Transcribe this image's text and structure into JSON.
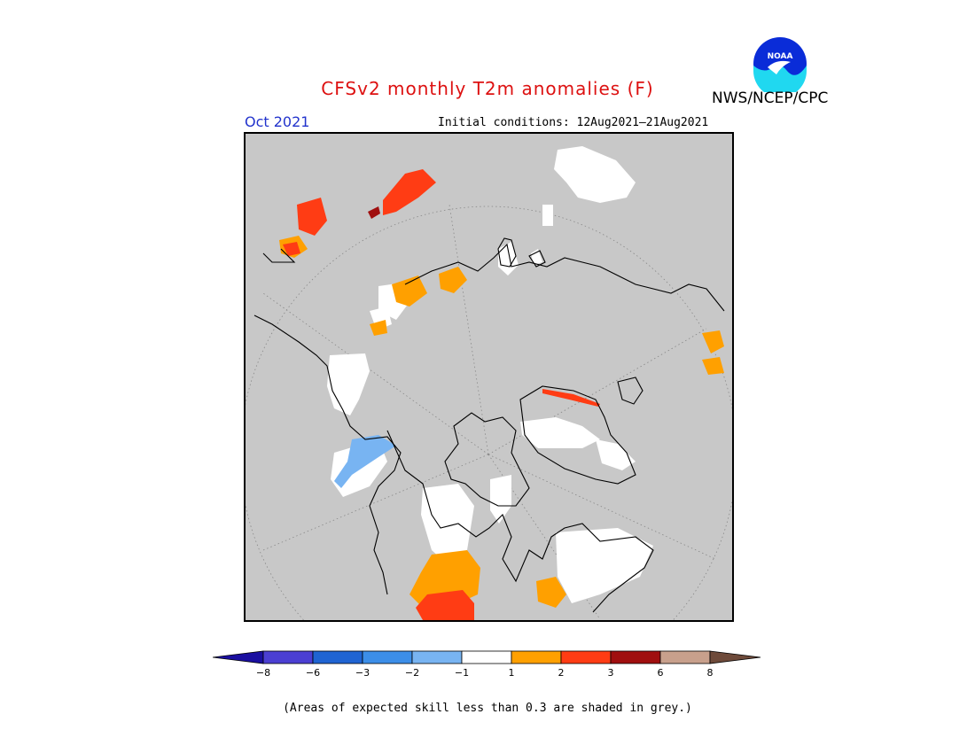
{
  "title": "CFSv2 monthly T2m anomalies (F)",
  "agency": "NWS/NCEP/CPC",
  "logo_text": "NOAA",
  "month": "Oct 2021",
  "initial_conditions": "Initial conditions: 12Aug2021–21Aug2021",
  "footnote": "(Areas of expected skill less than 0.3 are shaded in grey.)",
  "colorbar": {
    "bins": [
      {
        "color": "#1a0fa0"
      },
      {
        "color": "#4b3fd2"
      },
      {
        "color": "#1f64d2"
      },
      {
        "color": "#3c8ee8"
      },
      {
        "color": "#78b4f2"
      },
      {
        "color": "#ffffff"
      },
      {
        "color": "#ffa000"
      },
      {
        "color": "#ff3c14"
      },
      {
        "color": "#a00f0f"
      },
      {
        "color": "#c8a08c"
      },
      {
        "color": "#6e4a3a"
      }
    ],
    "ticks": [
      "-8",
      "-6",
      "-3",
      "-2",
      "-1",
      "1",
      "2",
      "3",
      "6",
      "8"
    ]
  },
  "colors": {
    "skill_mask": "#c8c8c8",
    "near_normal": "#ffffff",
    "warm_1": "#ffa000",
    "warm_2": "#ff3c14",
    "warm_3": "#a00f0f",
    "cool_1": "#78b4f2"
  }
}
